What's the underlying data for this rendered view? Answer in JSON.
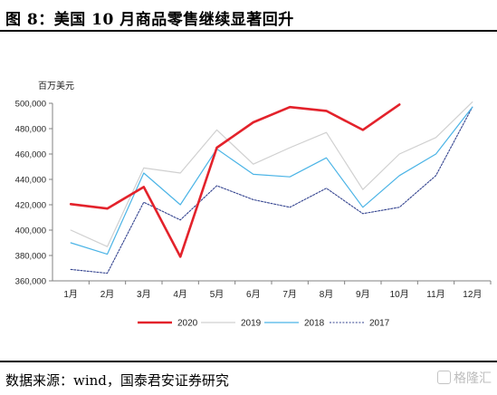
{
  "header": {
    "title": "图 8：美国 10 月商品零售继续显著回升"
  },
  "footer": {
    "source": "数据来源：wind，国泰君安证券研究",
    "watermark": "格隆汇"
  },
  "chart_data": {
    "type": "line",
    "ylabel": "百万美元",
    "categories": [
      "1月",
      "2月",
      "3月",
      "4月",
      "5月",
      "6月",
      "7月",
      "8月",
      "9月",
      "10月",
      "11月",
      "12月"
    ],
    "ylim": [
      360000,
      500000
    ],
    "yticks": [
      360000,
      380000,
      400000,
      420000,
      440000,
      460000,
      480000,
      500000
    ],
    "ytick_labels": [
      "360,000",
      "380,000",
      "400,000",
      "420,000",
      "440,000",
      "460,000",
      "480,000",
      "500,000"
    ],
    "grid": false,
    "legend_position": "bottom",
    "series": [
      {
        "name": "2020",
        "color": "#e3222b",
        "style": "solid-thick",
        "values": [
          420500,
          417000,
          434000,
          379000,
          465000,
          485000,
          497000,
          494000,
          479000,
          499000,
          null,
          null
        ]
      },
      {
        "name": "2019",
        "color": "#d0d0d0",
        "style": "solid",
        "values": [
          400000,
          387000,
          449000,
          445000,
          479000,
          452000,
          465000,
          477000,
          432000,
          460000,
          473000,
          501000
        ]
      },
      {
        "name": "2018",
        "color": "#4bb4e6",
        "style": "solid",
        "values": [
          390000,
          381000,
          445000,
          420000,
          464000,
          444000,
          442000,
          457000,
          418000,
          443000,
          460000,
          497000
        ]
      },
      {
        "name": "2017",
        "color": "#33438f",
        "style": "dotted",
        "values": [
          369000,
          366000,
          422000,
          408000,
          435000,
          424000,
          418000,
          433000,
          413000,
          418000,
          443000,
          497000
        ]
      }
    ]
  }
}
